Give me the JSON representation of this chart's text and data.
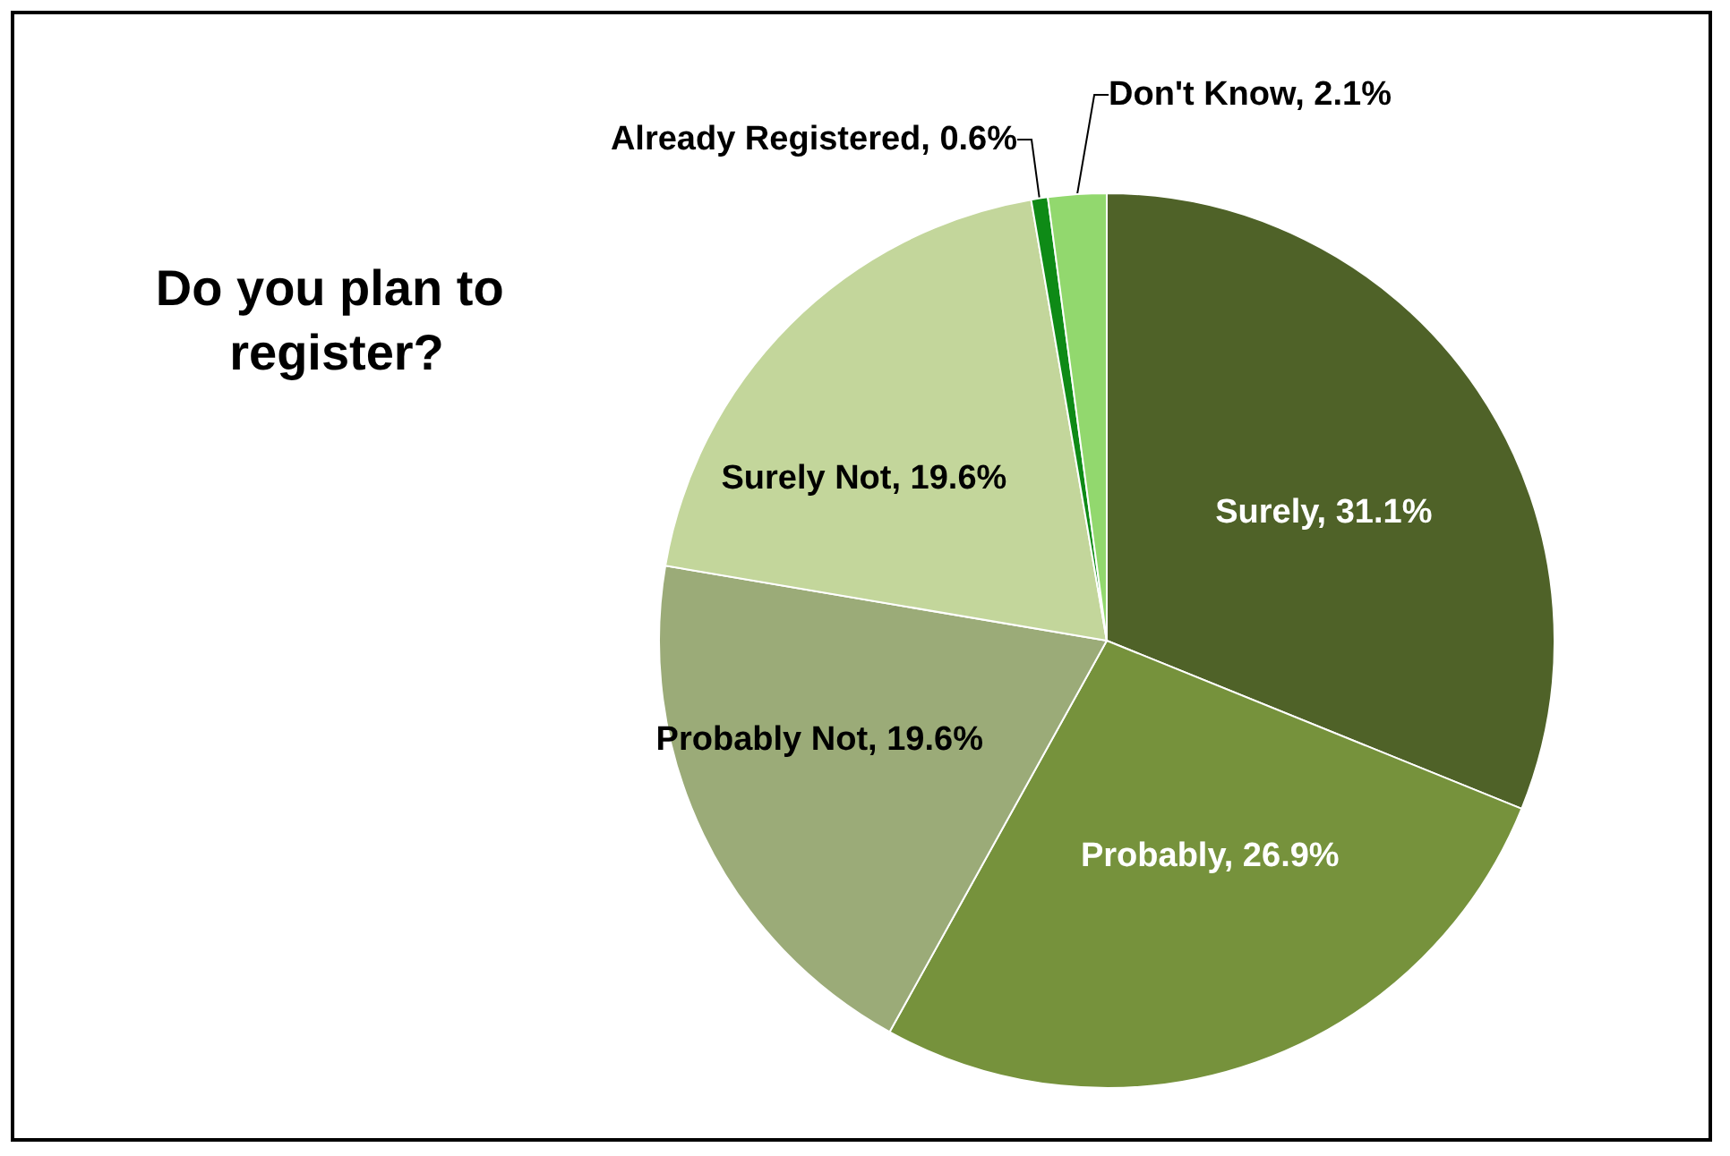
{
  "chart_data": {
    "type": "pie",
    "title": "Do you plan to register?",
    "categories": [
      "Surely",
      "Probably",
      "Probably Not",
      "Surely Not",
      "Already Registered",
      "Don't Know"
    ],
    "values": [
      31.1,
      26.9,
      19.6,
      19.6,
      0.6,
      2.1
    ],
    "value_labels": [
      "31.1%",
      "26.9%",
      "19.6%",
      "19.6%",
      "0.6%",
      "2.1%"
    ],
    "colors": [
      "#4f6228",
      "#76923c",
      "#9bab78",
      "#c3d69b",
      "#0e8a16",
      "#92d86e"
    ],
    "legend": false
  }
}
